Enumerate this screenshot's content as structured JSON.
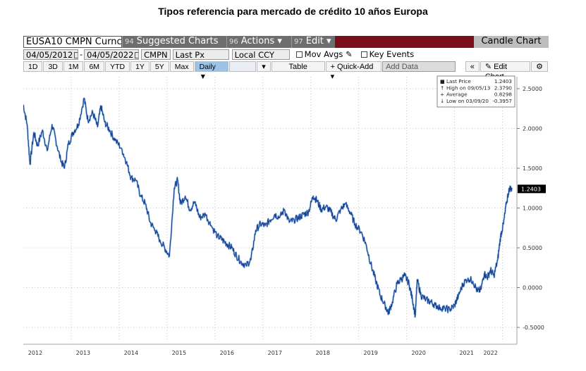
{
  "page_title": "Tipos referencia para mercado de crédito 10 años Europa",
  "toolbar": {
    "security": "EUSA10 CMPN Curnc",
    "suggested_num": "94",
    "suggested_label": "Suggested Charts",
    "actions_num": "96",
    "actions_label": "Actions ▾",
    "edit_num": "97",
    "edit_label": "Edit ▾",
    "chart_type": "Candle Chart"
  },
  "settings": {
    "start_date": "04/05/2012",
    "end_date": "04/05/2022",
    "source": "CMPN",
    "field": "Last Px",
    "currency": "Local CCY",
    "mov_avgs": "Mov Avgs",
    "key_events": "Key Events"
  },
  "periods": [
    "1D",
    "3D",
    "1M",
    "6M",
    "YTD",
    "1Y",
    "5Y",
    "Max"
  ],
  "controls": {
    "frequency": "Daily ▼",
    "table": "Table",
    "quick_add": "+ Quick-Add ▾",
    "add_data": "Add Data",
    "nav": "«",
    "edit_chart": "✎ Edit Chart",
    "gear": "⚙"
  },
  "colors": {
    "line": "#1b3f8f",
    "line_hi": "#3d8fd6",
    "last_tag": "#000000",
    "grid": "#b8b8b8"
  },
  "chart_data": {
    "type": "line",
    "title": "Tipos referencia para mercado de crédito 10 años Europa",
    "xlabel": "",
    "ylabel": "",
    "x_ticks": [
      "2012",
      "2013",
      "2014",
      "2015",
      "2016",
      "2017",
      "2018",
      "2019",
      "2020",
      "2021",
      "2022"
    ],
    "x_tick_positions_year": [
      2012.25,
      2013.25,
      2014.25,
      2015.25,
      2016.25,
      2017.25,
      2018.25,
      2019.25,
      2020.25,
      2021.25,
      2021.75
    ],
    "ylim": [
      -0.65,
      2.65
    ],
    "y_ticks": [
      -0.5,
      0.0,
      0.5,
      1.0,
      1.5,
      2.0,
      2.5
    ],
    "y_tick_labels": [
      "-0.5000",
      "0.0000",
      "0.5000",
      "1.0000",
      "1.5000",
      "2.0000",
      "2.5000"
    ],
    "xlim": [
      2012.0,
      2022.3
    ],
    "series": [
      {
        "name": "EUSA10 CMPN Curnc",
        "points": [
          [
            2012.0,
            2.3
          ],
          [
            2012.08,
            2.05
          ],
          [
            2012.14,
            1.55
          ],
          [
            2012.22,
            1.95
          ],
          [
            2012.3,
            1.78
          ],
          [
            2012.4,
            1.98
          ],
          [
            2012.5,
            1.72
          ],
          [
            2012.6,
            2.05
          ],
          [
            2012.68,
            1.85
          ],
          [
            2012.78,
            1.6
          ],
          [
            2012.86,
            1.5
          ],
          [
            2012.94,
            1.8
          ],
          [
            2013.04,
            1.95
          ],
          [
            2013.15,
            2.05
          ],
          [
            2013.27,
            2.38
          ],
          [
            2013.35,
            2.1
          ],
          [
            2013.45,
            2.2
          ],
          [
            2013.55,
            2.02
          ],
          [
            2013.62,
            2.28
          ],
          [
            2013.7,
            2.08
          ],
          [
            2013.8,
            1.98
          ],
          [
            2013.92,
            1.85
          ],
          [
            2014.05,
            1.75
          ],
          [
            2014.15,
            1.58
          ],
          [
            2014.25,
            1.38
          ],
          [
            2014.35,
            1.35
          ],
          [
            2014.45,
            1.15
          ],
          [
            2014.55,
            1.05
          ],
          [
            2014.65,
            0.82
          ],
          [
            2014.75,
            0.72
          ],
          [
            2014.85,
            0.6
          ],
          [
            2014.95,
            0.5
          ],
          [
            2015.05,
            0.4
          ],
          [
            2015.15,
            1.25
          ],
          [
            2015.22,
            1.35
          ],
          [
            2015.28,
            1.05
          ],
          [
            2015.38,
            1.15
          ],
          [
            2015.48,
            0.98
          ],
          [
            2015.58,
            1.08
          ],
          [
            2015.68,
            0.88
          ],
          [
            2015.8,
            0.92
          ],
          [
            2015.92,
            0.78
          ],
          [
            2016.05,
            0.65
          ],
          [
            2016.15,
            0.6
          ],
          [
            2016.25,
            0.55
          ],
          [
            2016.35,
            0.5
          ],
          [
            2016.45,
            0.4
          ],
          [
            2016.55,
            0.32
          ],
          [
            2016.65,
            0.28
          ],
          [
            2016.75,
            0.35
          ],
          [
            2016.85,
            0.72
          ],
          [
            2016.95,
            0.8
          ],
          [
            2017.05,
            0.78
          ],
          [
            2017.15,
            0.85
          ],
          [
            2017.25,
            0.92
          ],
          [
            2017.35,
            0.88
          ],
          [
            2017.45,
            0.98
          ],
          [
            2017.55,
            0.82
          ],
          [
            2017.65,
            0.85
          ],
          [
            2017.75,
            0.88
          ],
          [
            2017.85,
            0.92
          ],
          [
            2017.95,
            0.95
          ],
          [
            2018.05,
            1.15
          ],
          [
            2018.12,
            1.1
          ],
          [
            2018.22,
            0.98
          ],
          [
            2018.32,
            1.02
          ],
          [
            2018.42,
            0.95
          ],
          [
            2018.52,
            0.85
          ],
          [
            2018.62,
            0.98
          ],
          [
            2018.72,
            1.05
          ],
          [
            2018.82,
            0.95
          ],
          [
            2018.92,
            0.8
          ],
          [
            2019.05,
            0.7
          ],
          [
            2019.15,
            0.55
          ],
          [
            2019.25,
            0.3
          ],
          [
            2019.35,
            0.1
          ],
          [
            2019.45,
            -0.1
          ],
          [
            2019.55,
            -0.22
          ],
          [
            2019.62,
            -0.32
          ],
          [
            2019.7,
            -0.18
          ],
          [
            2019.8,
            0.05
          ],
          [
            2019.88,
            0.1
          ],
          [
            2019.96,
            0.15
          ],
          [
            2020.05,
            0.05
          ],
          [
            2020.12,
            -0.15
          ],
          [
            2020.18,
            -0.35
          ],
          [
            2020.22,
            0.1
          ],
          [
            2020.3,
            -0.1
          ],
          [
            2020.4,
            -0.15
          ],
          [
            2020.5,
            -0.18
          ],
          [
            2020.6,
            -0.22
          ],
          [
            2020.7,
            -0.25
          ],
          [
            2020.8,
            -0.26
          ],
          [
            2020.9,
            -0.28
          ],
          [
            2021.0,
            -0.22
          ],
          [
            2021.08,
            -0.1
          ],
          [
            2021.18,
            0.05
          ],
          [
            2021.28,
            0.12
          ],
          [
            2021.38,
            0.08
          ],
          [
            2021.48,
            -0.05
          ],
          [
            2021.55,
            -0.02
          ],
          [
            2021.62,
            0.18
          ],
          [
            2021.68,
            0.12
          ],
          [
            2021.75,
            0.22
          ],
          [
            2021.82,
            0.15
          ],
          [
            2021.9,
            0.35
          ],
          [
            2021.96,
            0.65
          ],
          [
            2022.02,
            0.8
          ],
          [
            2022.08,
            1.05
          ],
          [
            2022.14,
            1.25
          ],
          [
            2022.2,
            1.2403
          ]
        ]
      }
    ],
    "last_value_label": "1.2403",
    "legend": [
      {
        "label": "Last Price",
        "value": "1.2403"
      },
      {
        "label": "High on 09/05/13",
        "value": "2.3790"
      },
      {
        "label": "Average",
        "value": "0.8298"
      },
      {
        "label": "Low on 03/09/20",
        "value": "-0.3957"
      }
    ],
    "legend_position": "top-right",
    "grid": true
  }
}
